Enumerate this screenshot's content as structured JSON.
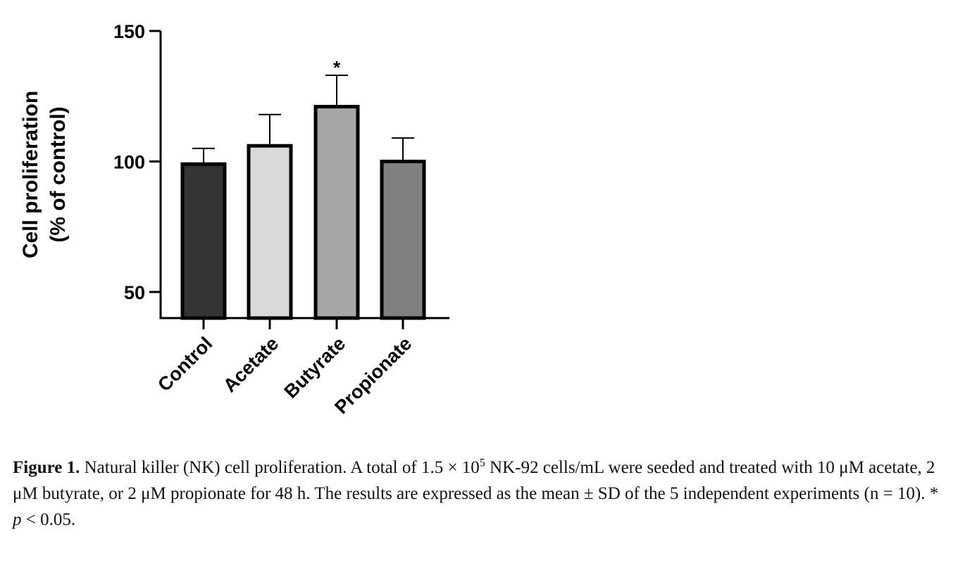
{
  "chart_data": {
    "type": "bar",
    "categories": [
      "Control",
      "Acetate",
      "Butyrate",
      "Propionate"
    ],
    "values": [
      99,
      106,
      121,
      100
    ],
    "errors": [
      6,
      12,
      12,
      9
    ],
    "bar_colors": [
      "#333333",
      "#d9d9d9",
      "#a6a6a6",
      "#808080"
    ],
    "annotations": [
      {
        "category": "Butyrate",
        "text": "*"
      }
    ],
    "ylabel_line1": "Cell proliferation",
    "ylabel_line2": "(% of control)",
    "ylim": [
      40,
      150
    ],
    "yticks": [
      50,
      100,
      150
    ],
    "grid": false,
    "legend": "none"
  },
  "caption": {
    "label": "Figure 1.",
    "part1": " Natural killer (NK) cell proliferation. A total of 1.5 × 10",
    "exponent": "5",
    "part2": " NK-92 cells/mL were seeded and treated with 10 μM acetate, 2 μM butyrate, or 2 μM propionate for 48 h. The results are expressed as the mean ± SD of the 5 independent experiments (n = 10). * ",
    "p_symbol": "p",
    "part3": " < 0.05."
  }
}
